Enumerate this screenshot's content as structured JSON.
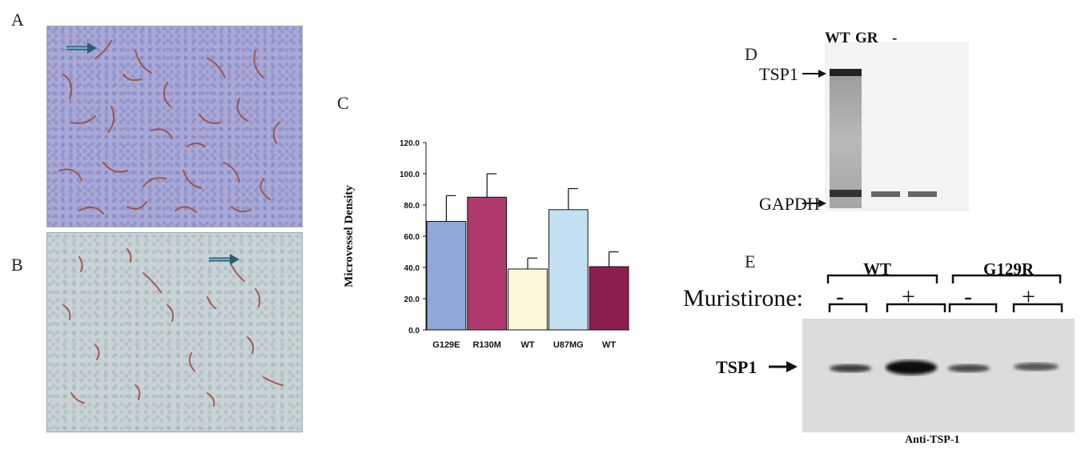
{
  "panels": {
    "a": {
      "letter": "A"
    },
    "b": {
      "letter": "B"
    },
    "c": {
      "letter": "C"
    },
    "d": {
      "letter": "D",
      "lanes": [
        "WT",
        "GR",
        "-"
      ],
      "bands": [
        "TSP1",
        "GAPDH"
      ]
    },
    "e": {
      "letter": "E",
      "groups": [
        "WT",
        "G129R"
      ],
      "treatment_label": "Muristirone:",
      "lanes": [
        "-",
        "+",
        "-",
        "+"
      ],
      "band": "TSP1",
      "antibody": "Anti-TSP-1"
    }
  },
  "chart_data": {
    "type": "bar",
    "categories": [
      "G129E",
      "R130M",
      "WT",
      "U87MG",
      "WT"
    ],
    "values": [
      69.5,
      85.0,
      39.0,
      77.0,
      40.5
    ],
    "errors": [
      16.5,
      15.0,
      7.0,
      13.5,
      9.5
    ],
    "ylabel": "Microvessel Density",
    "ylim": [
      0,
      120
    ],
    "yticks": [
      "0.0",
      "20.0",
      "40.0",
      "60.0",
      "80.0",
      "100.0",
      "120.0"
    ],
    "colors": [
      "#8fa8d8",
      "#b03a6e",
      "#fbf8da",
      "#c2e0f2",
      "#8e1e52"
    ],
    "grid": false,
    "legend": "none"
  }
}
